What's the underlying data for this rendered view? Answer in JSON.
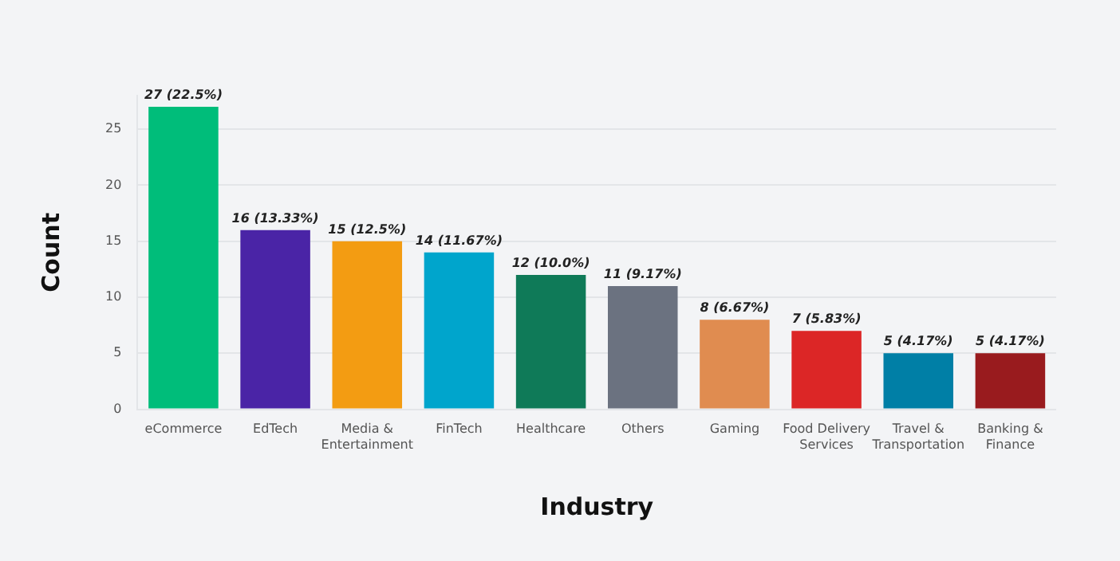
{
  "chart_data": {
    "type": "bar",
    "xlabel": "Industry",
    "ylabel": "Count",
    "categories": [
      "eCommerce",
      "EdTech",
      "Media & Entertainment",
      "FinTech",
      "Healthcare",
      "Others",
      "Gaming",
      "Food Delivery Services",
      "Travel & Transportation",
      "Banking & Finance"
    ],
    "values": [
      27,
      16,
      15,
      14,
      12,
      11,
      8,
      7,
      5,
      5
    ],
    "colors": [
      "#00bd7a",
      "#4a24a6",
      "#f39c12",
      "#00a5cc",
      "#0f7a58",
      "#6b7280",
      "#e08c50",
      "#dc2626",
      "#007fa6",
      "#991b1e"
    ],
    "value_labels": [
      "27 (22.5%)",
      "16 (13.33%)",
      "15 (12.5%)",
      "14 (11.67%)",
      "12 (10.0%)",
      "11 (9.17%)",
      "8 (6.67%)",
      "7 (5.83%)",
      "5 (4.17%)",
      "5 (4.17%)"
    ],
    "ylim": [
      0,
      28
    ],
    "yticks": [
      0,
      5,
      10,
      15,
      20,
      25
    ],
    "grid": "y",
    "legend": false
  }
}
